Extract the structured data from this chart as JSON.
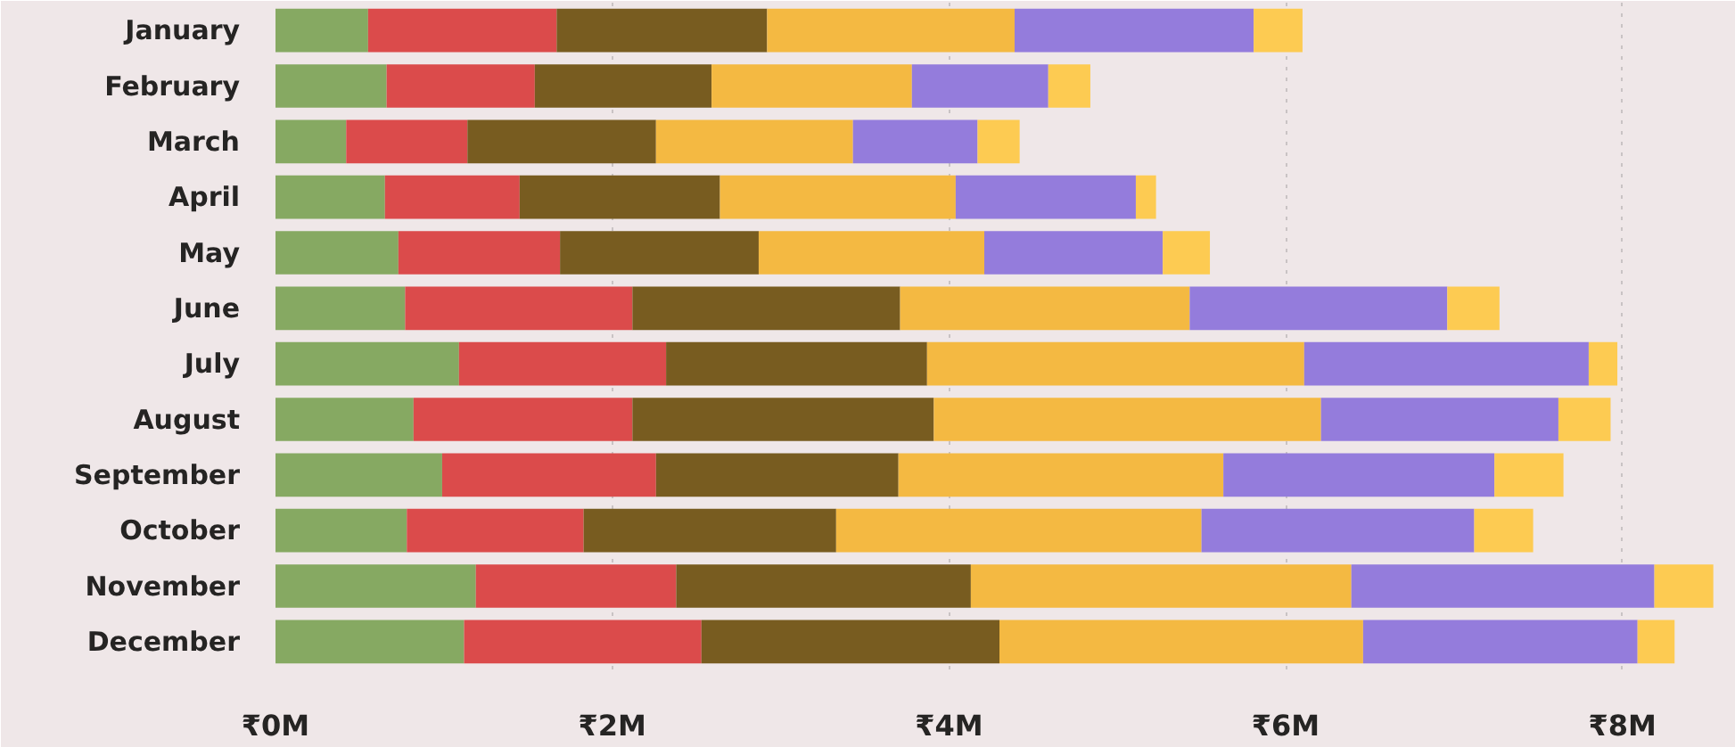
{
  "chart_data": {
    "type": "bar",
    "orientation": "horizontal",
    "stacked": true,
    "categories": [
      "January",
      "February",
      "March",
      "April",
      "May",
      "June",
      "July",
      "August",
      "September",
      "October",
      "November",
      "December"
    ],
    "series": [
      {
        "color": "#86a962",
        "values": [
          0.55,
          0.66,
          0.42,
          0.65,
          0.73,
          0.77,
          1.09,
          0.82,
          0.99,
          0.78,
          1.19,
          1.12
        ]
      },
      {
        "color": "#db4b4b",
        "values": [
          1.12,
          0.88,
          0.72,
          0.8,
          0.96,
          1.35,
          1.23,
          1.3,
          1.27,
          1.05,
          1.19,
          1.41
        ]
      },
      {
        "color": "#785c20",
        "values": [
          1.25,
          1.05,
          1.12,
          1.19,
          1.18,
          1.59,
          1.55,
          1.79,
          1.44,
          1.5,
          1.75,
          1.77
        ]
      },
      {
        "color": "#f4b942",
        "values": [
          1.47,
          1.19,
          1.17,
          1.4,
          1.34,
          1.72,
          2.24,
          2.3,
          1.93,
          2.17,
          2.26,
          2.16
        ]
      },
      {
        "color": "#947cdc",
        "values": [
          1.42,
          0.81,
          0.74,
          1.07,
          1.06,
          1.53,
          1.69,
          1.41,
          1.61,
          1.62,
          1.8,
          1.63
        ]
      },
      {
        "color": "#fdcb52",
        "values": [
          0.29,
          0.25,
          0.25,
          0.12,
          0.28,
          0.31,
          0.17,
          0.31,
          0.41,
          0.35,
          0.35,
          0.22
        ]
      }
    ],
    "xlim": [
      0,
      8.6
    ],
    "xticks": [
      {
        "value": 0,
        "label": "₹0M"
      },
      {
        "value": 2,
        "label": "₹2M"
      },
      {
        "value": 4,
        "label": "₹4M"
      },
      {
        "value": 6,
        "label": "₹6M"
      },
      {
        "value": 8,
        "label": "₹8M"
      }
    ],
    "grid": "x"
  }
}
